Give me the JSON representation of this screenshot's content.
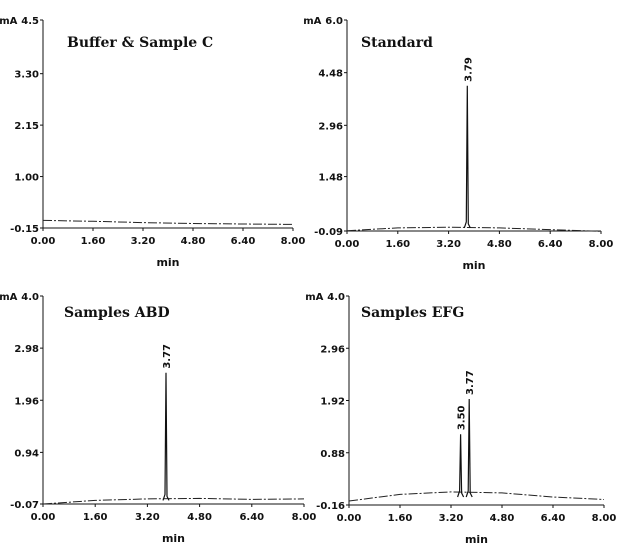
{
  "chart_data": [
    {
      "type": "line",
      "title": "Buffer & Sample C",
      "xlabel": "min",
      "y_unit": "mA",
      "xlim": [
        0,
        8
      ],
      "ylim": [
        -0.15,
        4.5
      ],
      "x_ticks": [
        "0.00",
        "1.60",
        "3.20",
        "4.80",
        "6.40",
        "8.00"
      ],
      "y_ticks": [
        "-0.15",
        "1.00",
        "2.15",
        "3.30",
        "4.5"
      ],
      "baseline": [
        [
          0,
          0.02
        ],
        [
          1.6,
          0.0
        ],
        [
          3.2,
          -0.03
        ],
        [
          4.8,
          -0.05
        ],
        [
          6.4,
          -0.06
        ],
        [
          8.0,
          -0.07
        ]
      ],
      "peaks": []
    },
    {
      "type": "line",
      "title": "Standard",
      "xlabel": "min",
      "y_unit": "mA",
      "xlim": [
        0,
        8
      ],
      "ylim": [
        -0.09,
        6.0
      ],
      "x_ticks": [
        "0.00",
        "1.60",
        "3.20",
        "4.80",
        "6.40",
        "8.00"
      ],
      "y_ticks": [
        "-0.09",
        "1.48",
        "2.96",
        "4.48",
        "6.0"
      ],
      "baseline": [
        [
          0,
          -0.08
        ],
        [
          1.6,
          0.0
        ],
        [
          3.2,
          0.02
        ],
        [
          4.8,
          0.0
        ],
        [
          6.4,
          -0.05
        ],
        [
          8.0,
          -0.1
        ]
      ],
      "peaks": [
        {
          "label": "3.79",
          "x": 3.79,
          "y": 4.1
        }
      ]
    },
    {
      "type": "line",
      "title": "Samples ABD",
      "xlabel": "min",
      "y_unit": "mA",
      "xlim": [
        0,
        8
      ],
      "ylim": [
        -0.07,
        4.0
      ],
      "x_ticks": [
        "0.00",
        "1.60",
        "3.20",
        "4.80",
        "6.40",
        "8.00"
      ],
      "y_ticks": [
        "-0.07",
        "0.94",
        "1.96",
        "2.98",
        "4.0"
      ],
      "baseline": [
        [
          0,
          -0.07
        ],
        [
          1.6,
          0.0
        ],
        [
          3.2,
          0.03
        ],
        [
          4.8,
          0.04
        ],
        [
          6.4,
          0.02
        ],
        [
          8.0,
          0.03
        ]
      ],
      "peaks": [
        {
          "label": "3.77",
          "x": 3.77,
          "y": 2.5
        }
      ]
    },
    {
      "type": "line",
      "title": "Samples EFG",
      "xlabel": "min",
      "y_unit": "mA",
      "xlim": [
        0,
        8
      ],
      "ylim": [
        -0.16,
        4.0
      ],
      "x_ticks": [
        "0.00",
        "1.60",
        "3.20",
        "4.80",
        "6.40",
        "8.00"
      ],
      "y_ticks": [
        "-0.16",
        "0.88",
        "1.92",
        "2.96",
        "4.0"
      ],
      "baseline": [
        [
          0,
          -0.08
        ],
        [
          1.6,
          0.05
        ],
        [
          3.2,
          0.1
        ],
        [
          4.8,
          0.08
        ],
        [
          6.4,
          0.0
        ],
        [
          8.0,
          -0.05
        ]
      ],
      "peaks": [
        {
          "label": "3.50",
          "x": 3.5,
          "y": 1.25
        },
        {
          "label": "3.77",
          "x": 3.77,
          "y": 1.95
        }
      ]
    }
  ]
}
